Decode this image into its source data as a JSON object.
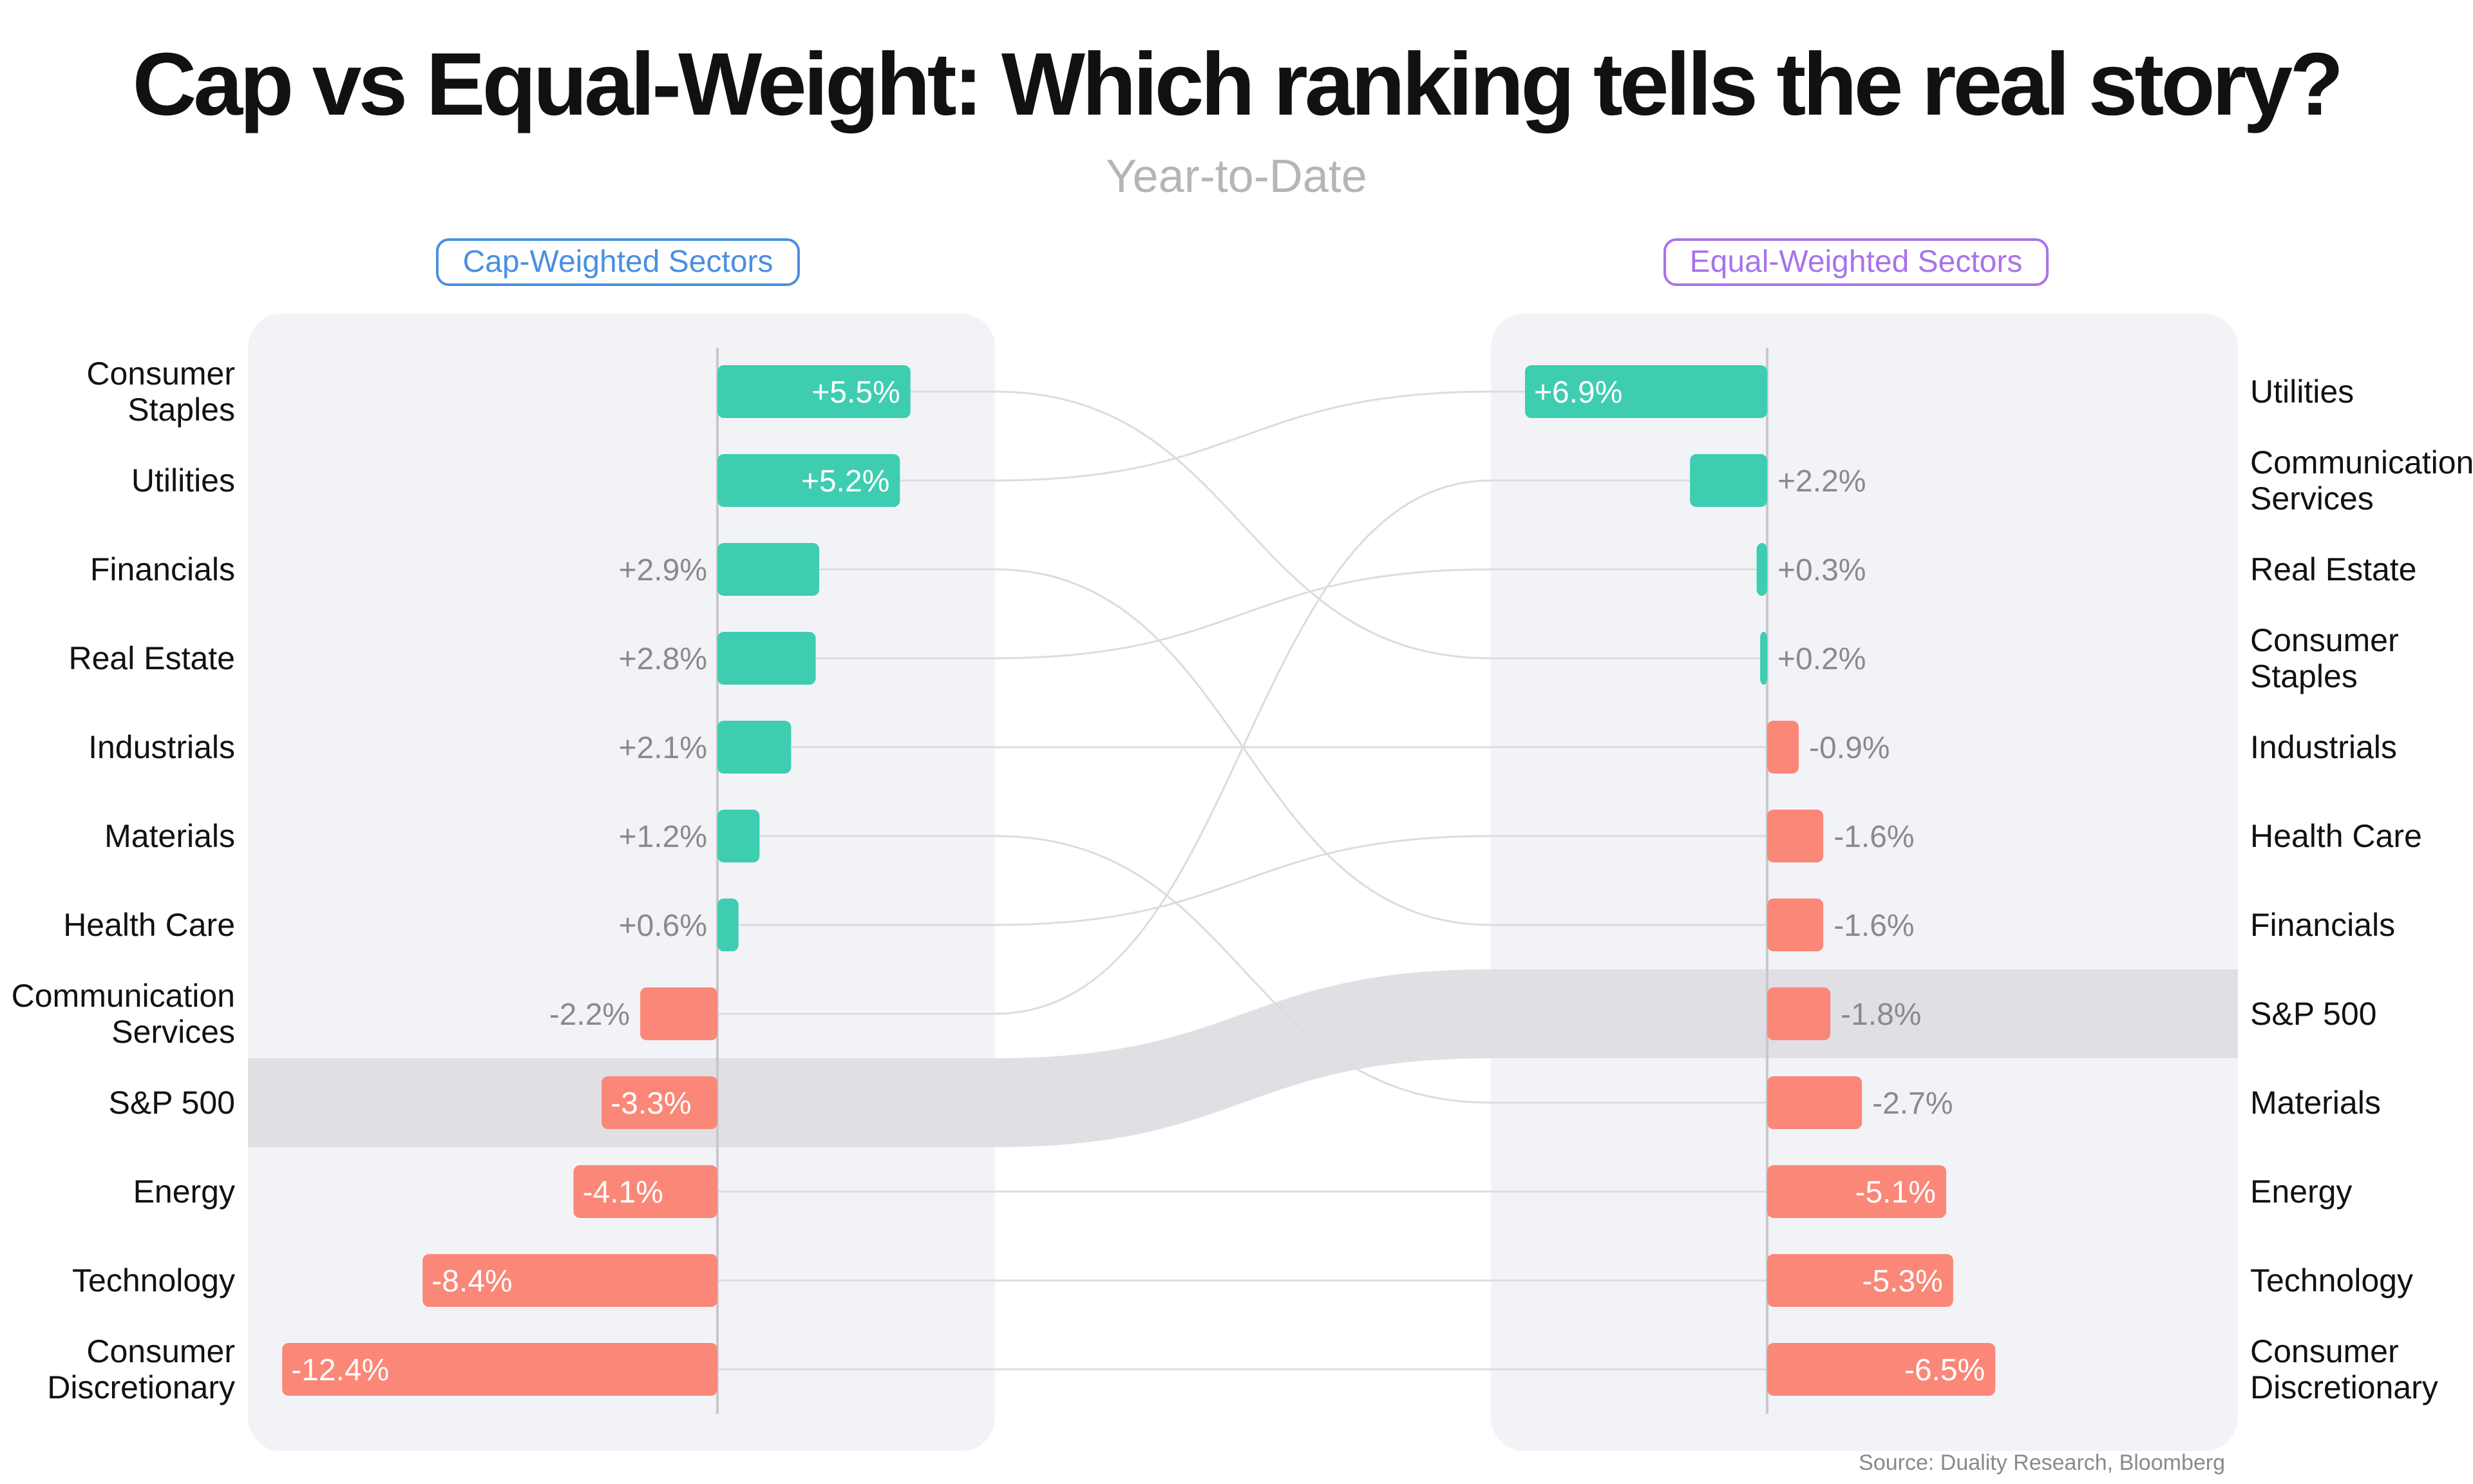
{
  "title": "Cap vs Equal-Weight: Which ranking tells the real story?",
  "subtitle": "Year-to-Date",
  "source": "Source: Duality Research, Bloomberg",
  "colors": {
    "positive": "#3ecdb0",
    "negative": "#fa8778",
    "panel": "#f2f3f7",
    "highlight": "#e0dfe4",
    "label_gray": "#8a8a8a",
    "cap_accent": "#4a8fe0",
    "equal_accent": "#a774e8"
  },
  "chart_data": [
    {
      "type": "bar",
      "title": "Cap-Weighted Sectors",
      "categories": [
        "Consumer Staples",
        "Utilities",
        "Financials",
        "Real Estate",
        "Industrials",
        "Materials",
        "Health Care",
        "Communication Services",
        "S&P 500",
        "Energy",
        "Technology",
        "Consumer Discretionary"
      ],
      "category_lines": [
        [
          "Consumer",
          "Staples"
        ],
        [
          "Utilities"
        ],
        [
          "Financials"
        ],
        [
          "Real Estate"
        ],
        [
          "Industrials"
        ],
        [
          "Materials"
        ],
        [
          "Health Care"
        ],
        [
          "Communication",
          "Services"
        ],
        [
          "S&P 500"
        ],
        [
          "Energy"
        ],
        [
          "Technology"
        ],
        [
          "Consumer",
          "Discretionary"
        ]
      ],
      "values": [
        5.5,
        5.2,
        2.9,
        2.8,
        2.1,
        1.2,
        0.6,
        -2.2,
        -3.3,
        -4.1,
        -8.4,
        -12.4
      ],
      "value_labels": [
        "+5.5%",
        "+5.2%",
        "+2.9%",
        "+2.8%",
        "+2.1%",
        "+1.2%",
        "+0.6%",
        "-2.2%",
        "-3.3%",
        "-4.1%",
        "-8.4%",
        "-12.4%"
      ],
      "highlight": "S&P 500",
      "orientation": "horizontal"
    },
    {
      "type": "bar",
      "title": "Equal-Weighted Sectors",
      "categories": [
        "Utilities",
        "Communication Services",
        "Real Estate",
        "Consumer Staples",
        "Industrials",
        "Health Care",
        "Financials",
        "S&P 500",
        "Materials",
        "Energy",
        "Technology",
        "Consumer Discretionary"
      ],
      "category_lines": [
        [
          "Utilities"
        ],
        [
          "Communication",
          "Services"
        ],
        [
          "Real Estate"
        ],
        [
          "Consumer",
          "Staples"
        ],
        [
          "Industrials"
        ],
        [
          "Health Care"
        ],
        [
          "Financials"
        ],
        [
          "S&P 500"
        ],
        [
          "Materials"
        ],
        [
          "Energy"
        ],
        [
          "Technology"
        ],
        [
          "Consumer",
          "Discretionary"
        ]
      ],
      "values": [
        6.9,
        2.2,
        0.3,
        0.2,
        -0.9,
        -1.6,
        -1.6,
        -1.8,
        -2.7,
        -5.1,
        -5.3,
        -6.5
      ],
      "value_labels": [
        "+6.9%",
        "+2.2%",
        "+0.3%",
        "+0.2%",
        "-0.9%",
        "-1.6%",
        "-1.6%",
        "-1.8%",
        "-2.7%",
        "-5.1%",
        "-5.3%",
        "-6.5%"
      ],
      "highlight": "S&P 500",
      "orientation": "horizontal"
    }
  ]
}
